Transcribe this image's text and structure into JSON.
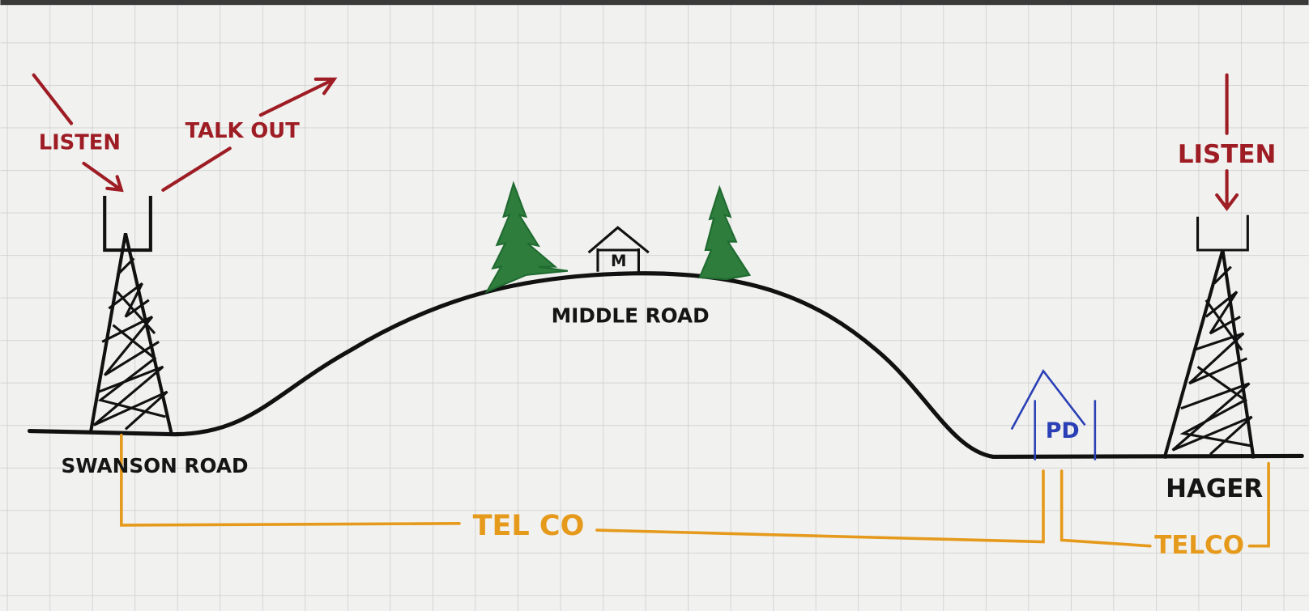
{
  "labels": {
    "listen_left": "LISTEN",
    "talk_out": "TALK OUT",
    "listen_right": "LISTEN",
    "middle_road": "MIDDLE ROAD",
    "swanson_road": "SWANSON ROAD",
    "hager": "HAGER",
    "hilltop_building": "M",
    "pd_building": "PD",
    "telco_long": "TEL CO",
    "telco_short": "TELCO"
  }
}
